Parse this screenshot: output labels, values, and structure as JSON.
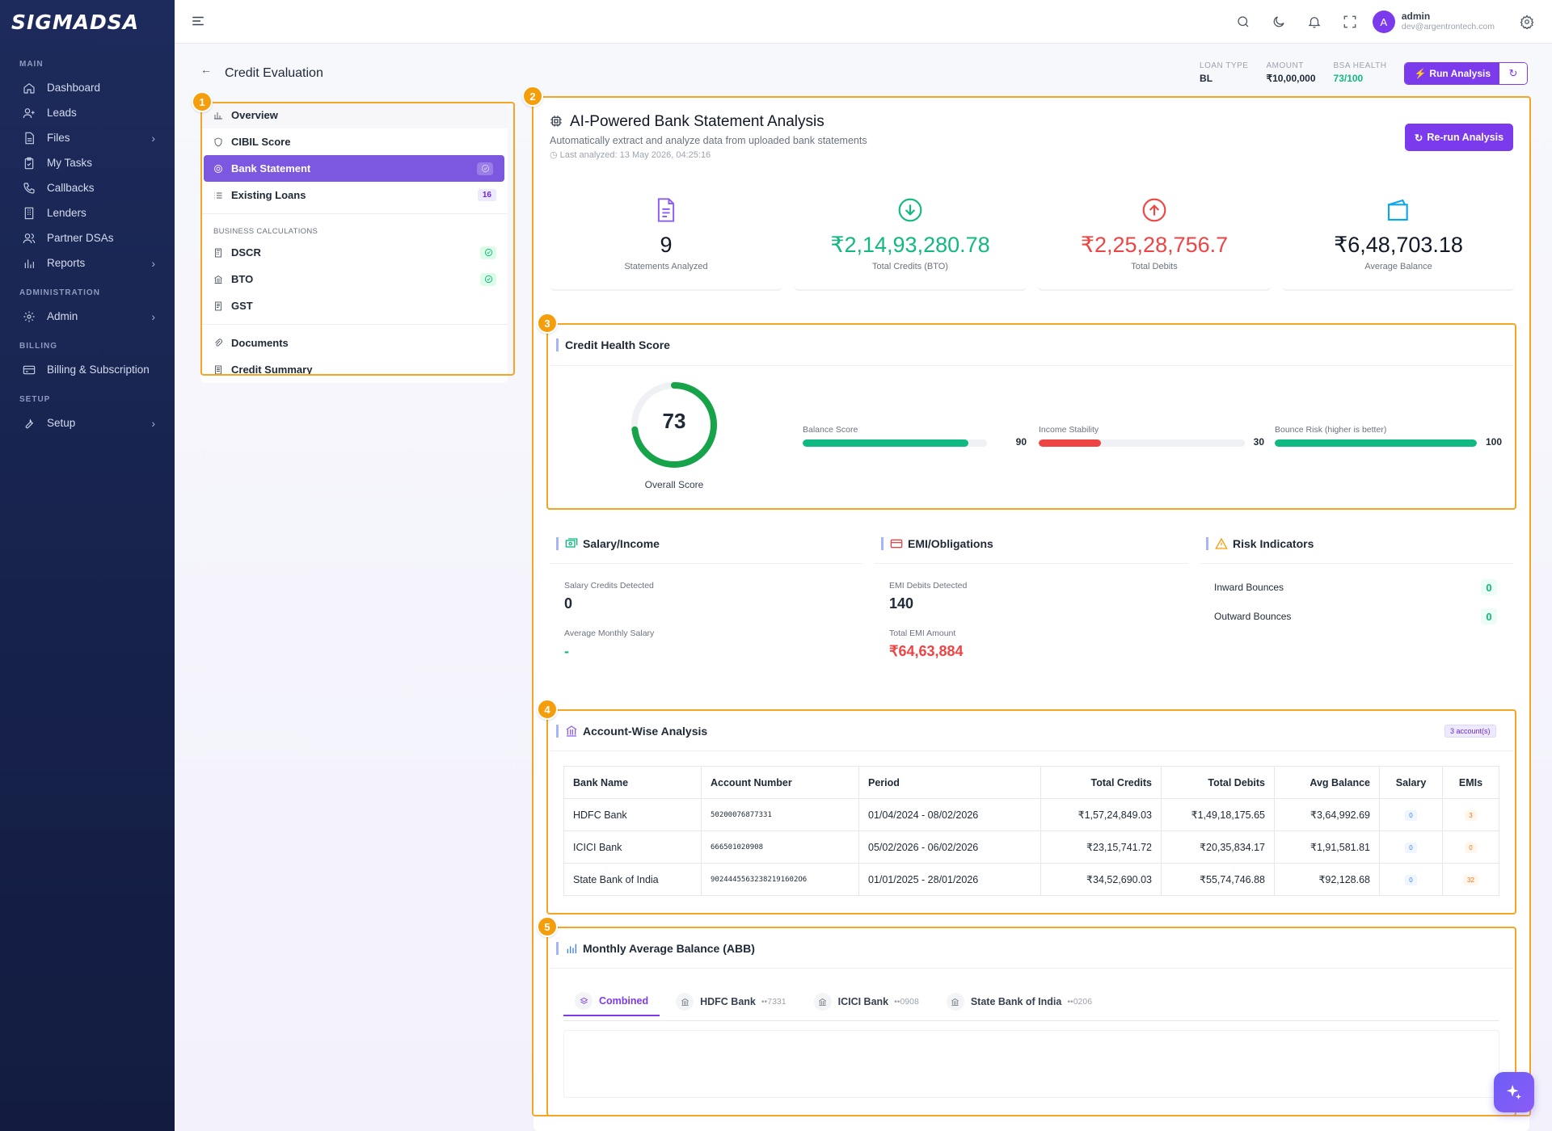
{
  "brand": {
    "name": "SIGMADSA"
  },
  "sidebar": {
    "sections": [
      {
        "label": "MAIN",
        "items": [
          {
            "label": "Dashboard",
            "icon": "home-icon"
          },
          {
            "label": "Leads",
            "icon": "user-plus-icon"
          },
          {
            "label": "Files",
            "icon": "file-icon",
            "chevron": true
          },
          {
            "label": "My Tasks",
            "icon": "clipboard-icon"
          },
          {
            "label": "Callbacks",
            "icon": "phone-icon"
          },
          {
            "label": "Lenders",
            "icon": "building-icon"
          },
          {
            "label": "Partner DSAs",
            "icon": "users-icon"
          },
          {
            "label": "Reports",
            "icon": "bar-chart-icon",
            "chevron": true
          }
        ]
      },
      {
        "label": "ADMINISTRATION",
        "items": [
          {
            "label": "Admin",
            "icon": "gear-icon",
            "chevron": true
          }
        ]
      },
      {
        "label": "BILLING",
        "items": [
          {
            "label": "Billing & Subscription",
            "icon": "credit-card-icon"
          }
        ]
      },
      {
        "label": "SETUP",
        "items": [
          {
            "label": "Setup",
            "icon": "wrench-icon",
            "chevron": true
          }
        ]
      }
    ]
  },
  "user": {
    "avatar": "A",
    "name": "admin",
    "email": "dev@argentrontech.com"
  },
  "page": {
    "title": "Credit Evaluation",
    "meta": {
      "loan_type_label": "LOAN TYPE",
      "loan_type": "BL",
      "amount_label": "AMOUNT",
      "amount": "₹10,00,000",
      "bsa_label": "BSA HEALTH",
      "bsa": "73/100"
    },
    "run_button": "Run Analysis"
  },
  "left_nav": {
    "overview": "Overview",
    "cibil": "CIBIL Score",
    "bank": "Bank Statement",
    "loans": "Existing Loans",
    "loans_count": "16",
    "biz_label": "BUSINESS CALCULATIONS",
    "dscr": "DSCR",
    "bto": "BTO",
    "gst": "GST",
    "docs": "Documents",
    "summary": "Credit Summary"
  },
  "markers": [
    "1",
    "2",
    "3",
    "4",
    "5"
  ],
  "analysis": {
    "title": "AI-Powered Bank Statement Analysis",
    "subtitle": "Automatically extract and analyze data from uploaded bank statements",
    "last": "Last analyzed: 13 May 2026, 04:25:16",
    "rerun": "Re-run Analysis"
  },
  "stats": [
    {
      "value": "9",
      "label": "Statements Analyzed",
      "color": "#111827"
    },
    {
      "value": "₹2,14,93,280.78",
      "label": "Total Credits (BTO)",
      "color": "#10b981"
    },
    {
      "value": "₹2,25,28,756.7",
      "label": "Total Debits",
      "color": "#ef4444"
    },
    {
      "value": "₹6,48,703.18",
      "label": "Average Balance",
      "color": "#111827"
    }
  ],
  "health": {
    "title": "Credit Health Score",
    "score": "73",
    "score_fraction": 0.73,
    "score_label": "Overall Score",
    "bars": [
      {
        "label": "Balance Score",
        "value": "90",
        "fraction": 0.9,
        "color": "#10b981"
      },
      {
        "label": "Income Stability",
        "value": "30",
        "fraction": 0.3,
        "color": "#ef4444"
      },
      {
        "label": "Bounce Risk (higher is better)",
        "value": "100",
        "fraction": 1.0,
        "color": "#10b981"
      }
    ]
  },
  "salary": {
    "title": "Salary/Income",
    "credits_label": "Salary Credits Detected",
    "credits": "0",
    "avg_label": "Average Monthly Salary",
    "avg": "-"
  },
  "emi": {
    "title": "EMI/Obligations",
    "debits_label": "EMI Debits Detected",
    "debits": "140",
    "total_label": "Total EMI Amount",
    "total": "₹64,63,884"
  },
  "risk": {
    "title": "Risk Indicators",
    "inward_label": "Inward Bounces",
    "inward": "0",
    "outward_label": "Outward Bounces",
    "outward": "0"
  },
  "accounts": {
    "title": "Account-Wise Analysis",
    "tag": "3 account(s)",
    "headers": [
      "Bank Name",
      "Account Number",
      "Period",
      "Total Credits",
      "Total Debits",
      "Avg Balance",
      "Salary",
      "EMIs"
    ],
    "rows": [
      {
        "bank": "HDFC Bank",
        "acct": "50200076877331",
        "period": "01/04/2024 - 08/02/2026",
        "credits": "₹1,57,24,849.03",
        "debits": "₹1,49,18,175.65",
        "avg": "₹3,64,992.69",
        "salary": "0",
        "emis": "3"
      },
      {
        "bank": "ICICI Bank",
        "acct": "666501020908",
        "period": "05/02/2026 - 06/02/2026",
        "credits": "₹23,15,741.72",
        "debits": "₹20,35,834.17",
        "avg": "₹1,91,581.81",
        "salary": "0",
        "emis": "0"
      },
      {
        "bank": "State Bank of India",
        "acct": "90244455632382191602O6",
        "period": "01/01/2025 - 28/01/2026",
        "credits": "₹34,52,690.03",
        "debits": "₹55,74,746.88",
        "avg": "₹92,128.68",
        "salary": "0",
        "emis": "32"
      }
    ]
  },
  "abb": {
    "title": "Monthly Average Balance (ABB)",
    "tabs": [
      {
        "label": "Combined",
        "mask": ""
      },
      {
        "label": "HDFC Bank",
        "mask": "••7331"
      },
      {
        "label": "ICICI Bank",
        "mask": "••0908"
      },
      {
        "label": "State Bank of India",
        "mask": "••0206"
      }
    ]
  }
}
